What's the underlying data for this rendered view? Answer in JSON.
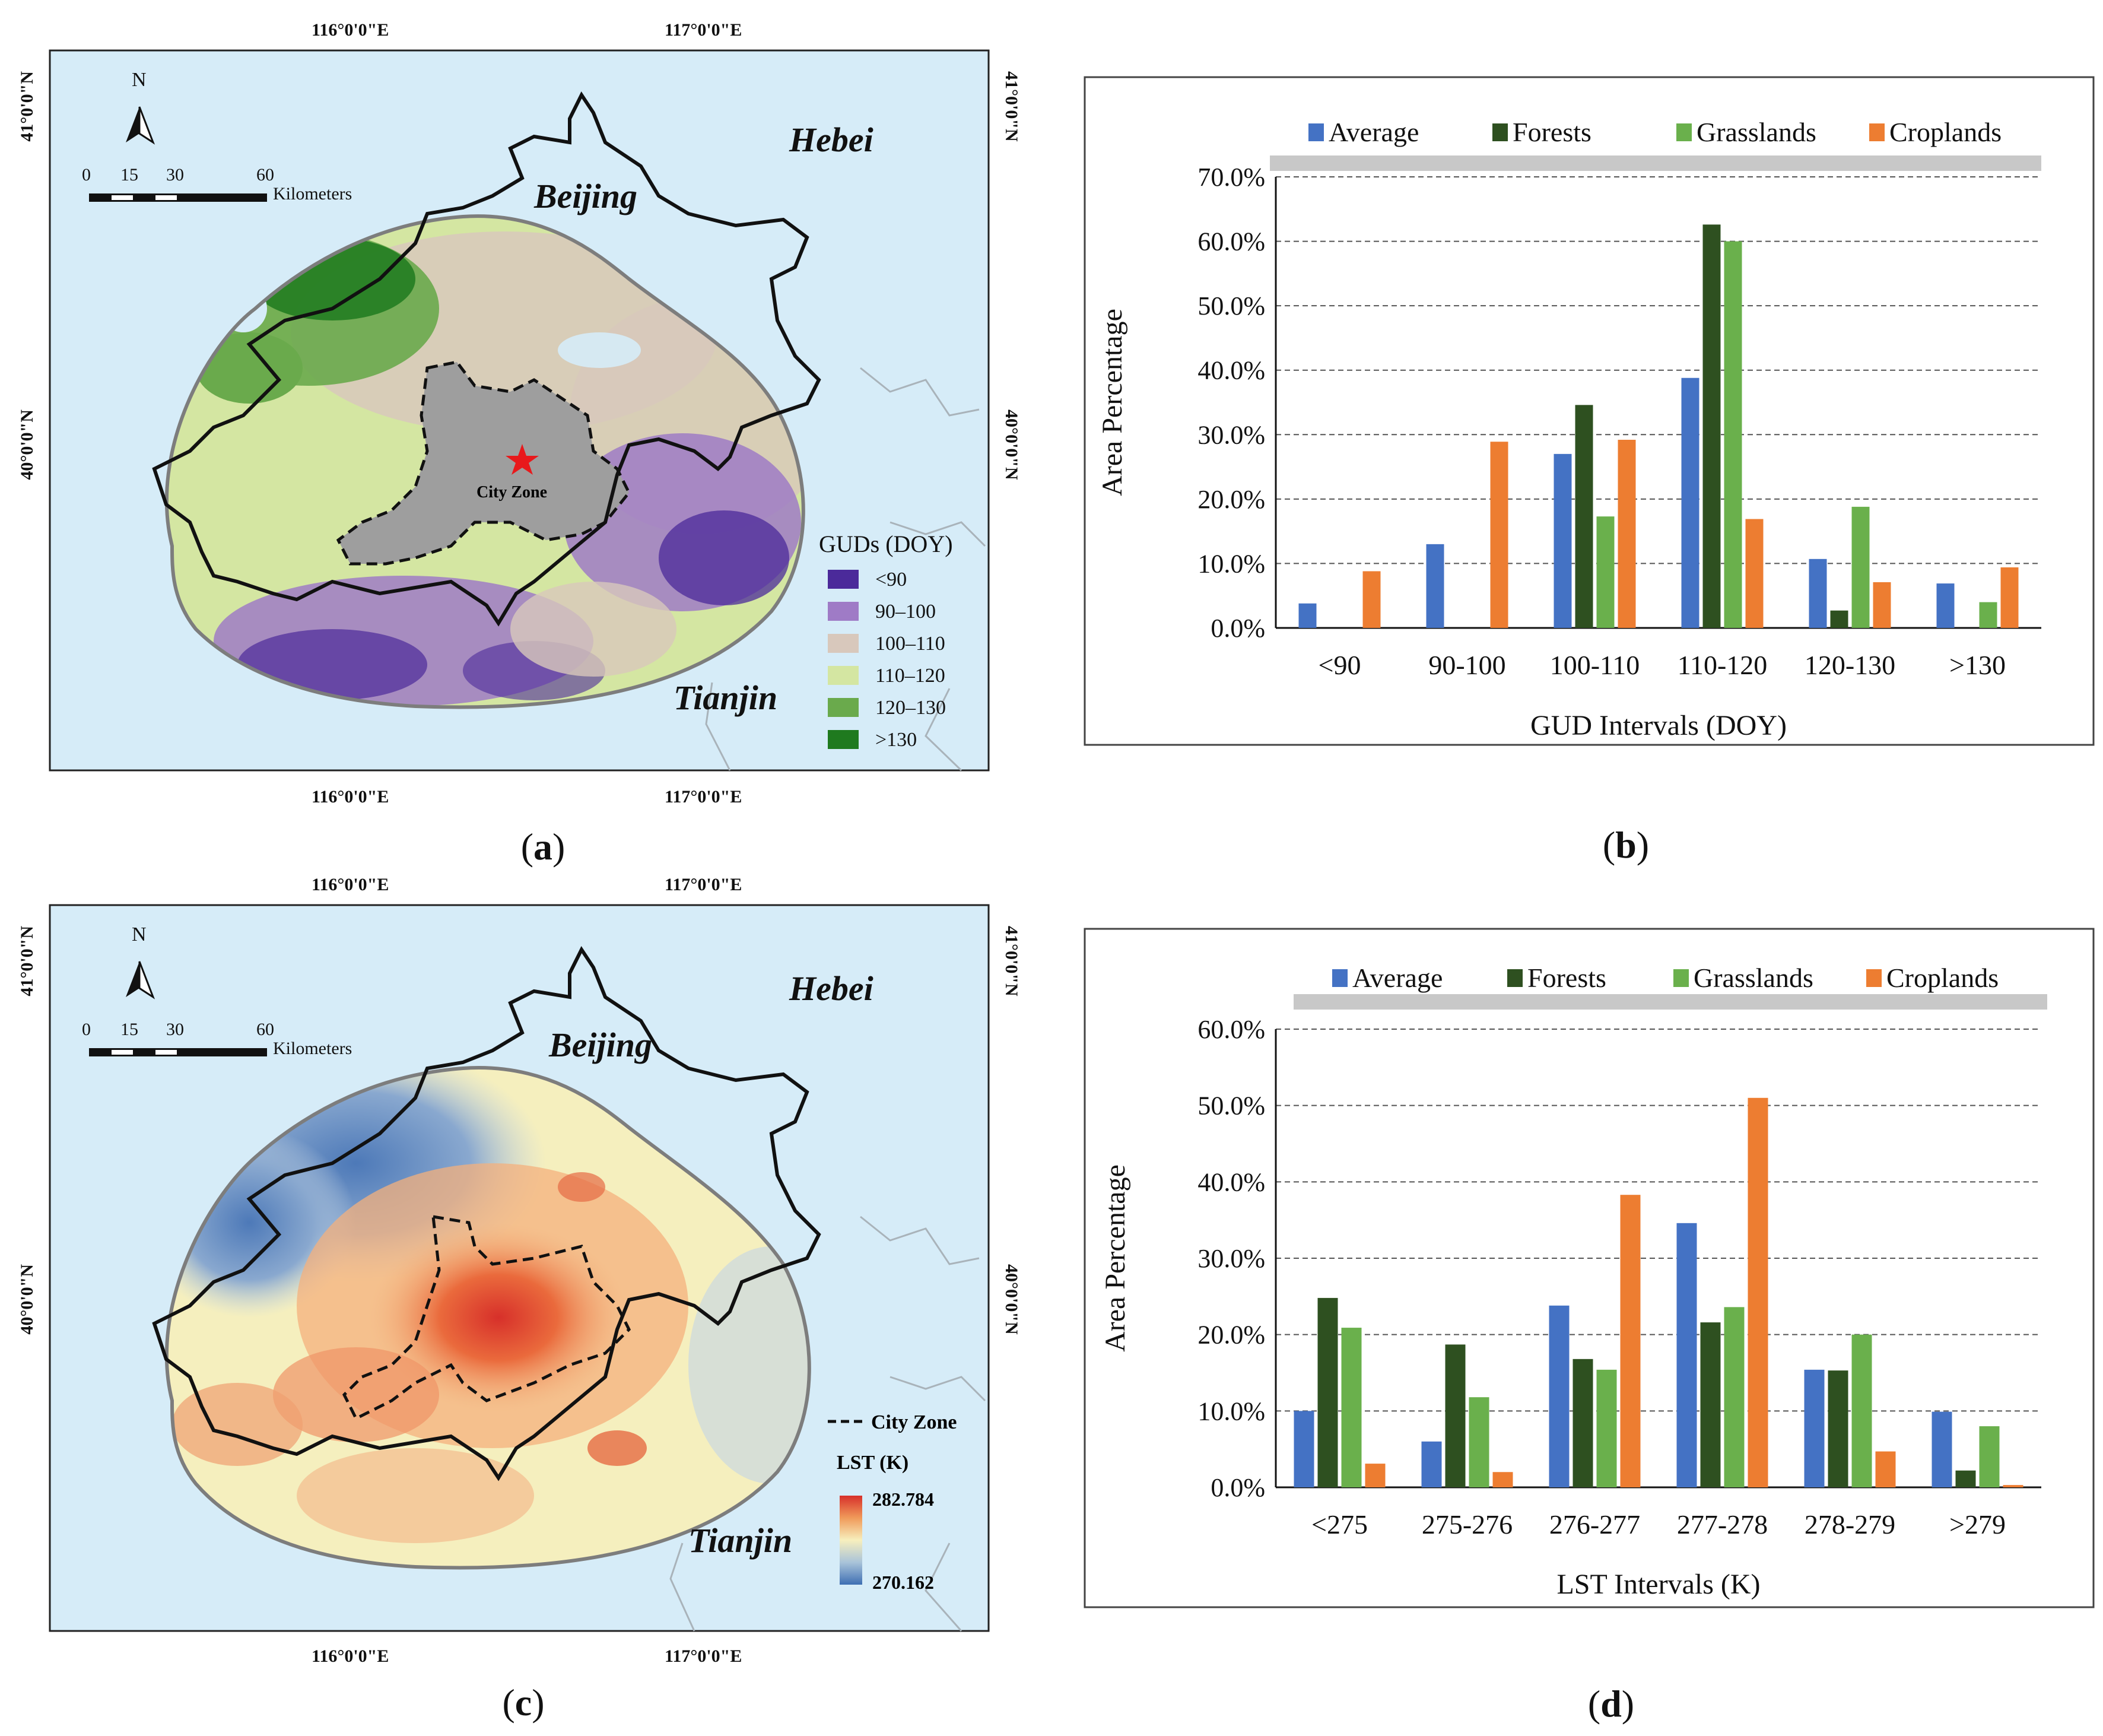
{
  "panels": {
    "a": {
      "label_prefix": "(",
      "label_letter": "a",
      "label_suffix": ")",
      "lon_labels": [
        "116°0'0\"E",
        "117°0'0\"E"
      ],
      "lat_labels": [
        "41°0'0\"N",
        "40°0'0\"N"
      ],
      "regions": {
        "hebei": "Hebei",
        "beijing": "Beijing",
        "tianjin": "Tianjin"
      },
      "north": "N",
      "scalebar": {
        "ticks": [
          "0",
          "15",
          "30",
          "60"
        ],
        "unit": "Kilometers"
      },
      "city_zone_label": "City Zone",
      "legend": {
        "title": "GUDs (DOY)",
        "items": [
          {
            "label": "<90",
            "color": "#4b2a9a"
          },
          {
            "label": "90–100",
            "color": "#9f7bc6"
          },
          {
            "label": "100–110",
            "color": "#d8c8bc"
          },
          {
            "label": "110–120",
            "color": "#d4e6a2"
          },
          {
            "label": "120–130",
            "color": "#6aaa4c"
          },
          {
            "label": ">130",
            "color": "#1f7a1f"
          }
        ]
      }
    },
    "b": {
      "label_prefix": "(",
      "label_letter": "b",
      "label_suffix": ")"
    },
    "c": {
      "label_prefix": "(",
      "label_letter": "c",
      "label_suffix": ")",
      "lon_labels": [
        "116°0'0\"E",
        "117°0'0\"E"
      ],
      "lat_labels": [
        "41°0'0\"N",
        "40°0'0\"N"
      ],
      "regions": {
        "hebei": "Hebei",
        "beijing": "Beijing",
        "tianjin": "Tianjin"
      },
      "north": "N",
      "scalebar": {
        "ticks": [
          "0",
          "15",
          "30",
          "60"
        ],
        "unit": "Kilometers"
      },
      "legend": {
        "city_zone": "City Zone",
        "title": "LST (K)",
        "max": "282.784",
        "min": "270.162"
      }
    },
    "d": {
      "label_prefix": "(",
      "label_letter": "d",
      "label_suffix": ")"
    }
  },
  "colors": {
    "ocean": "#d6ecf8",
    "Average": "#4472c4",
    "Forests": "#2e5020",
    "Grasslands": "#6ab04c",
    "Croplands": "#ed7d31"
  },
  "chart_data": [
    {
      "id": "b",
      "type": "bar",
      "categories": [
        "<90",
        "90-100",
        "100-110",
        "110-120",
        "120-130",
        ">130"
      ],
      "series": [
        {
          "name": "Average",
          "values": [
            3.8,
            13.0,
            27.0,
            38.8,
            10.7,
            6.9
          ]
        },
        {
          "name": "Forests",
          "values": [
            0,
            0,
            34.6,
            62.6,
            2.7,
            0
          ]
        },
        {
          "name": "Grasslands",
          "values": [
            0,
            0,
            17.3,
            60.0,
            18.8,
            4.0
          ]
        },
        {
          "name": "Croplands",
          "values": [
            8.8,
            28.9,
            29.2,
            16.9,
            7.1,
            9.4
          ]
        }
      ],
      "xlabel": "GUD Intervals (DOY)",
      "ylabel": "Area Percentage",
      "ylim": [
        0,
        70
      ],
      "yticks": [
        "0.0%",
        "10.0%",
        "20.0%",
        "30.0%",
        "40.0%",
        "50.0%",
        "60.0%",
        "70.0%"
      ],
      "legend_position": "top"
    },
    {
      "id": "d",
      "type": "bar",
      "categories": [
        "<275",
        "275-276",
        "276-277",
        "277-278",
        "278-279",
        ">279"
      ],
      "series": [
        {
          "name": "Average",
          "values": [
            10.0,
            6.0,
            23.8,
            34.6,
            15.4,
            9.9
          ]
        },
        {
          "name": "Forests",
          "values": [
            24.8,
            18.7,
            16.8,
            21.6,
            15.3,
            2.2
          ]
        },
        {
          "name": "Grasslands",
          "values": [
            20.9,
            11.8,
            15.4,
            23.6,
            20.0,
            8.0
          ]
        },
        {
          "name": "Croplands",
          "values": [
            3.1,
            2.0,
            38.3,
            51.0,
            4.7,
            0.3
          ]
        }
      ],
      "xlabel": "LST Intervals (K)",
      "ylabel": "Area Percentage",
      "ylim": [
        0,
        60
      ],
      "yticks": [
        "0.0%",
        "10.0%",
        "20.0%",
        "30.0%",
        "40.0%",
        "50.0%",
        "60.0%"
      ],
      "legend_position": "top"
    }
  ]
}
